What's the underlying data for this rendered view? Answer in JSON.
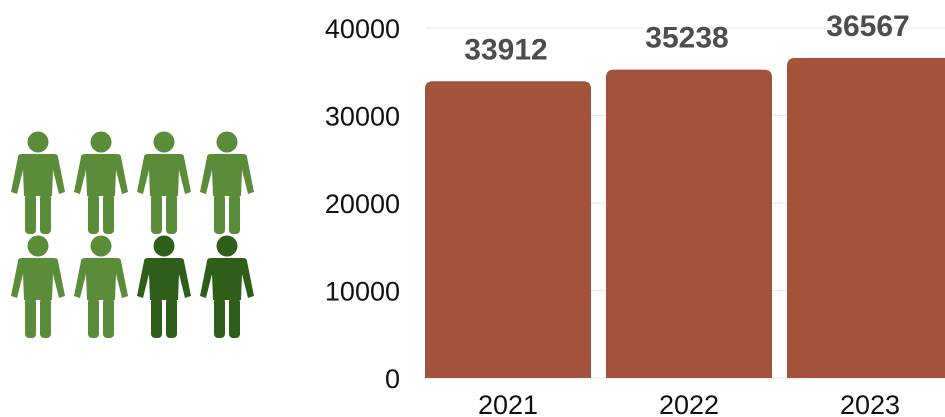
{
  "pictogram": {
    "icon": "person-icon",
    "total": 8,
    "highlighted": 2,
    "base_color": "#5b8c3a",
    "highlight_color": "#2f5e1a"
  },
  "chart_data": {
    "type": "bar",
    "categories": [
      "2021",
      "2022",
      "2023"
    ],
    "values": [
      33912,
      35238,
      36567
    ],
    "ylim": [
      0,
      40000
    ],
    "yticks": [
      0,
      10000,
      20000,
      30000,
      40000
    ],
    "data_labels": [
      "33912",
      "35238",
      "36567"
    ],
    "grid": true,
    "bar_color": "#a3533a",
    "grid_color": "#e6e6e6"
  }
}
